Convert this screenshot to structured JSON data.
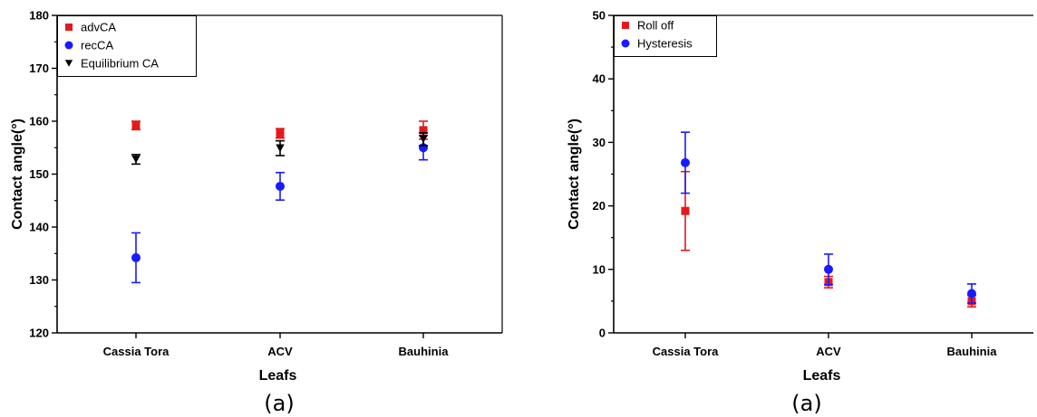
{
  "chart_data": [
    {
      "type": "scatter",
      "panel_label": "(a)",
      "xlabel": "Leafs",
      "ylabel": "Contact angle(°)",
      "categories": [
        "Cassia Tora",
        "ACV",
        "Bauhinia"
      ],
      "ylim": [
        120,
        180
      ],
      "yticks": [
        120,
        130,
        140,
        150,
        160,
        170,
        180
      ],
      "legend_position": "top-left",
      "grid": false,
      "series": [
        {
          "name": "advCA",
          "color": "#e31a1c",
          "marker": "square",
          "values": [
            159.2,
            157.7,
            158.3
          ],
          "errors": [
            0.8,
            0.9,
            1.7
          ]
        },
        {
          "name": "recCA",
          "color": "#1a1aff",
          "marker": "circle",
          "values": [
            134.2,
            147.7,
            155.0
          ],
          "errors": [
            4.7,
            2.6,
            2.3
          ]
        },
        {
          "name": "Equilibrium CA",
          "color": "#000000",
          "marker": "triangle-down",
          "values": [
            152.8,
            154.9,
            156.6
          ],
          "errors": [
            0.9,
            1.4,
            1.2
          ]
        }
      ]
    },
    {
      "type": "scatter",
      "panel_label": "(a)",
      "xlabel": "Leafs",
      "ylabel": "Contact angle(°)",
      "categories": [
        "Cassia Tora",
        "ACV",
        "Bauhinia"
      ],
      "ylim": [
        0,
        50
      ],
      "yticks": [
        0,
        10,
        20,
        30,
        40,
        50
      ],
      "legend_position": "top-left",
      "grid": false,
      "series": [
        {
          "name": "Roll off",
          "color": "#e31a1c",
          "marker": "square",
          "values": [
            19.2,
            8.0,
            5.0
          ],
          "errors": [
            6.2,
            0.9,
            0.9
          ]
        },
        {
          "name": "Hysteresis",
          "color": "#1a1aff",
          "marker": "circle",
          "values": [
            26.8,
            10.0,
            6.2
          ],
          "errors": [
            4.8,
            2.4,
            1.5
          ]
        }
      ]
    }
  ]
}
